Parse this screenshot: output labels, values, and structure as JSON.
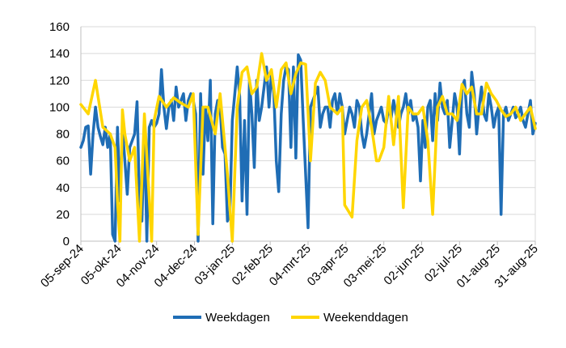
{
  "chart_data": {
    "type": "line",
    "title": "",
    "xlabel": "",
    "ylabel": "",
    "ylim": [
      0,
      160
    ],
    "yticks": [
      0,
      20,
      40,
      60,
      80,
      100,
      120,
      140,
      160
    ],
    "xtick_labels": [
      "05-sep-24",
      "05-okt-24",
      "04-nov-24",
      "04-dec-24",
      "03-jan-25",
      "02-feb-25",
      "04-mrt-25",
      "03-apr-25",
      "03-mei-25",
      "02-jun-25",
      "02-jul-25",
      "01-aug-25",
      "31-aug-25"
    ],
    "grid": "horizontal",
    "legend": "bottom",
    "colors": {
      "weekdays": "#1f6db5",
      "weekend": "#ffd600",
      "grid": "#d9d9d9"
    },
    "series": [
      {
        "name": "Weekdagen",
        "values": [
          [
            0,
            70
          ],
          [
            1,
            75
          ],
          [
            2,
            85
          ],
          [
            3,
            86
          ],
          [
            4,
            50
          ],
          [
            5,
            80
          ],
          [
            6,
            100
          ],
          [
            7,
            85
          ],
          [
            8,
            78
          ],
          [
            9,
            72
          ],
          [
            10,
            85
          ],
          [
            11,
            70
          ],
          [
            12,
            80
          ],
          [
            13,
            5
          ],
          [
            14,
            0
          ],
          [
            15,
            85
          ],
          [
            16,
            30
          ],
          [
            17,
            85
          ],
          [
            18,
            60
          ],
          [
            19,
            35
          ],
          [
            20,
            70
          ],
          [
            21,
            75
          ],
          [
            22,
            80
          ],
          [
            23,
            104
          ],
          [
            24,
            30
          ],
          [
            25,
            15
          ],
          [
            26,
            85
          ],
          [
            27,
            0
          ],
          [
            28,
            85
          ],
          [
            29,
            90
          ],
          [
            30,
            85
          ],
          [
            31,
            88
          ],
          [
            32,
            95
          ],
          [
            33,
            128
          ],
          [
            34,
            100
          ],
          [
            35,
            84
          ],
          [
            36,
            100
          ],
          [
            37,
            105
          ],
          [
            38,
            90
          ],
          [
            39,
            115
          ],
          [
            40,
            100
          ],
          [
            41,
            105
          ],
          [
            42,
            110
          ],
          [
            43,
            90
          ],
          [
            44,
            105
          ],
          [
            45,
            110
          ],
          [
            46,
            105
          ],
          [
            47,
            95
          ],
          [
            48,
            0
          ],
          [
            49,
            110
          ],
          [
            50,
            50
          ],
          [
            51,
            100
          ],
          [
            52,
            75
          ],
          [
            53,
            120
          ],
          [
            54,
            13
          ],
          [
            55,
            95
          ],
          [
            56,
            105
          ],
          [
            57,
            100
          ],
          [
            58,
            70
          ],
          [
            59,
            65
          ],
          [
            60,
            15
          ],
          [
            61,
            20
          ],
          [
            62,
            90
          ],
          [
            63,
            110
          ],
          [
            64,
            130
          ],
          [
            65,
            108
          ],
          [
            66,
            30
          ],
          [
            67,
            90
          ],
          [
            68,
            20
          ],
          [
            69,
            120
          ],
          [
            70,
            95
          ],
          [
            71,
            55
          ],
          [
            72,
            120
          ],
          [
            73,
            90
          ],
          [
            74,
            100
          ],
          [
            75,
            115
          ],
          [
            76,
            130
          ],
          [
            77,
            100
          ],
          [
            78,
            125
          ],
          [
            79,
            110
          ],
          [
            80,
            60
          ],
          [
            81,
            37
          ],
          [
            82,
            95
          ],
          [
            83,
            120
          ],
          [
            84,
            130
          ],
          [
            85,
            128
          ],
          [
            86,
            70
          ],
          [
            87,
            130
          ],
          [
            88,
            62
          ],
          [
            89,
            139
          ],
          [
            90,
            135
          ],
          [
            91,
            90
          ],
          [
            92,
            50
          ],
          [
            93,
            10
          ],
          [
            94,
            100
          ],
          [
            95,
            105
          ],
          [
            96,
            110
          ],
          [
            97,
            115
          ],
          [
            98,
            85
          ],
          [
            99,
            95
          ],
          [
            100,
            100
          ],
          [
            101,
            100
          ],
          [
            102,
            85
          ],
          [
            103,
            105
          ],
          [
            104,
            110
          ],
          [
            105,
            95
          ],
          [
            106,
            110
          ],
          [
            107,
            100
          ],
          [
            108,
            80
          ],
          [
            109,
            90
          ],
          [
            110,
            100
          ],
          [
            111,
            95
          ],
          [
            112,
            85
          ],
          [
            113,
            105
          ],
          [
            114,
            100
          ],
          [
            115,
            80
          ],
          [
            116,
            70
          ],
          [
            117,
            80
          ],
          [
            118,
            95
          ],
          [
            119,
            110
          ],
          [
            120,
            80
          ],
          [
            121,
            90
          ],
          [
            122,
            95
          ],
          [
            123,
            100
          ],
          [
            124,
            90
          ],
          [
            125,
            88
          ],
          [
            126,
            100
          ],
          [
            127,
            92
          ],
          [
            128,
            105
          ],
          [
            129,
            95
          ],
          [
            130,
            85
          ],
          [
            131,
            95
          ],
          [
            132,
            100
          ],
          [
            133,
            110
          ],
          [
            134,
            95
          ],
          [
            135,
            105
          ],
          [
            136,
            90
          ],
          [
            137,
            95
          ],
          [
            138,
            85
          ],
          [
            139,
            45
          ],
          [
            140,
            90
          ],
          [
            141,
            70
          ],
          [
            142,
            100
          ],
          [
            143,
            105
          ],
          [
            144,
            75
          ],
          [
            145,
            110
          ],
          [
            146,
            90
          ],
          [
            147,
            118
          ],
          [
            148,
            100
          ],
          [
            149,
            95
          ],
          [
            150,
            105
          ],
          [
            151,
            70
          ],
          [
            152,
            90
          ],
          [
            153,
            110
          ],
          [
            154,
            100
          ],
          [
            155,
            65
          ],
          [
            156,
            115
          ],
          [
            157,
            120
          ],
          [
            158,
            95
          ],
          [
            159,
            85
          ],
          [
            160,
            126
          ],
          [
            161,
            110
          ],
          [
            162,
            80
          ],
          [
            163,
            100
          ],
          [
            164,
            115
          ],
          [
            165,
            95
          ],
          [
            166,
            90
          ],
          [
            167,
            110
          ],
          [
            168,
            100
          ],
          [
            169,
            85
          ],
          [
            170,
            95
          ],
          [
            171,
            100
          ],
          [
            172,
            20
          ],
          [
            173,
            95
          ],
          [
            174,
            100
          ],
          [
            175,
            90
          ],
          [
            176,
            95
          ],
          [
            177,
            100
          ],
          [
            178,
            92
          ],
          [
            179,
            95
          ],
          [
            180,
            100
          ],
          [
            181,
            90
          ],
          [
            182,
            85
          ],
          [
            183,
            95
          ],
          [
            184,
            105
          ],
          [
            185,
            80
          ],
          [
            186,
            88
          ]
        ]
      },
      {
        "name": "Weekenddagen",
        "values": [
          [
            0,
            102
          ],
          [
            3,
            95
          ],
          [
            6,
            120
          ],
          [
            9,
            85
          ],
          [
            12,
            80
          ],
          [
            14,
            70
          ],
          [
            15,
            30
          ],
          [
            16,
            0
          ],
          [
            17,
            98
          ],
          [
            18,
            80
          ],
          [
            20,
            60
          ],
          [
            22,
            70
          ],
          [
            24,
            0
          ],
          [
            26,
            95
          ],
          [
            29,
            0
          ],
          [
            30,
            90
          ],
          [
            32,
            108
          ],
          [
            35,
            100
          ],
          [
            38,
            107
          ],
          [
            41,
            103
          ],
          [
            44,
            100
          ],
          [
            46,
            110
          ],
          [
            48,
            5
          ],
          [
            50,
            100
          ],
          [
            52,
            100
          ],
          [
            55,
            80
          ],
          [
            57,
            110
          ],
          [
            60,
            50
          ],
          [
            62,
            0
          ],
          [
            64,
            100
          ],
          [
            66,
            126
          ],
          [
            68,
            130
          ],
          [
            70,
            110
          ],
          [
            72,
            115
          ],
          [
            74,
            140
          ],
          [
            76,
            120
          ],
          [
            78,
            128
          ],
          [
            80,
            100
          ],
          [
            82,
            128
          ],
          [
            84,
            133
          ],
          [
            86,
            110
          ],
          [
            88,
            125
          ],
          [
            90,
            133
          ],
          [
            92,
            132
          ],
          [
            94,
            60
          ],
          [
            96,
            118
          ],
          [
            98,
            126
          ],
          [
            100,
            120
          ],
          [
            102,
            100
          ],
          [
            105,
            95
          ],
          [
            107,
            100
          ],
          [
            108,
            27
          ],
          [
            111,
            18
          ],
          [
            113,
            75
          ],
          [
            115,
            100
          ],
          [
            117,
            105
          ],
          [
            119,
            85
          ],
          [
            121,
            60
          ],
          [
            122,
            60
          ],
          [
            124,
            70
          ],
          [
            126,
            108
          ],
          [
            128,
            72
          ],
          [
            130,
            108
          ],
          [
            132,
            25
          ],
          [
            134,
            100
          ],
          [
            136,
            95
          ],
          [
            138,
            95
          ],
          [
            140,
            100
          ],
          [
            142,
            75
          ],
          [
            144,
            20
          ],
          [
            146,
            100
          ],
          [
            148,
            108
          ],
          [
            150,
            95
          ],
          [
            152,
            95
          ],
          [
            154,
            90
          ],
          [
            156,
            117
          ],
          [
            158,
            110
          ],
          [
            160,
            115
          ],
          [
            162,
            95
          ],
          [
            164,
            95
          ],
          [
            166,
            118
          ],
          [
            168,
            110
          ],
          [
            170,
            105
          ],
          [
            172,
            98
          ],
          [
            174,
            93
          ],
          [
            176,
            95
          ],
          [
            178,
            100
          ],
          [
            180,
            90
          ],
          [
            182,
            95
          ],
          [
            184,
            100
          ],
          [
            186,
            84
          ]
        ]
      }
    ]
  }
}
